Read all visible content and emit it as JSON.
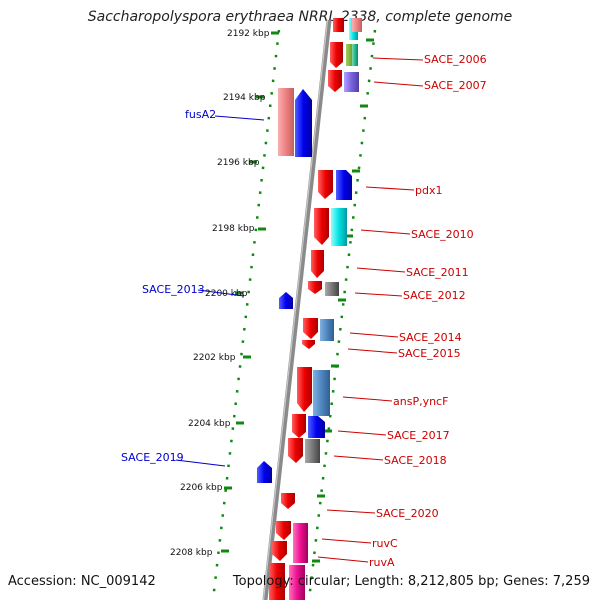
{
  "header": {
    "title": "Saccharopolyspora erythraea NRRL 2338, complete genome"
  },
  "footer": {
    "accession": "Accession: NC_009142",
    "topology": "Topology: circular; Length: 8,212,805 bp; Genes: 7,259"
  },
  "colors": {
    "forward": "#ee0000",
    "reverse": "#0000ee",
    "feature_label_fwd": "#cc0000",
    "feature_label_rev": "#0000cc",
    "backbone": "#888888",
    "tick": "#118811"
  },
  "scale_ticks": [
    "2192 kbp",
    "2194 kbp",
    "2196 kbp",
    "2198 kbp",
    "2200 kbp",
    "2202 kbp",
    "2204 kbp",
    "2206 kbp",
    "2208 kbp"
  ],
  "features_forward": [
    "SACE_2006",
    "SACE_2007",
    "pdx1",
    "SACE_2010",
    "SACE_2011",
    "SACE_2012",
    "SACE_2014",
    "SACE_2015",
    "ansP,yncF",
    "SACE_2017",
    "SACE_2018",
    "SACE_2020",
    "ruvC",
    "ruvA"
  ],
  "features_reverse": [
    "fusA2",
    "SACE_2013",
    "SACE_2019"
  ]
}
